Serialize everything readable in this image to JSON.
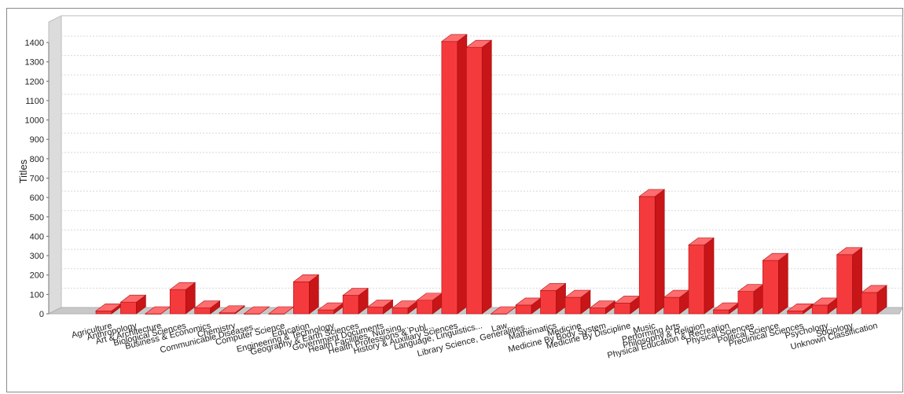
{
  "chart_data": {
    "type": "bar",
    "ylabel": "Titles",
    "ylim": [
      0,
      1400
    ],
    "yticks": [
      0,
      100,
      200,
      300,
      400,
      500,
      600,
      700,
      800,
      900,
      1000,
      1100,
      1200,
      1300,
      1400
    ],
    "grid": true,
    "categories": [
      "Agriculture",
      "Anthropology",
      "Art & Architecture",
      "Biological Sciences",
      "Business & Economics",
      "Chemistry",
      "Communicable Diseases...",
      "Computer Science",
      "Education",
      "Engineering & Technology",
      "Geography & Earth Sciences",
      "Government Documents",
      "Health Facilities, Nursing...",
      "Health Professions & Publ...",
      "History & Auxiliary Sciences",
      "Language, Linguistics...",
      "Law",
      "Library Science, Generalities...",
      "Mathematics",
      "Medicine",
      "Medicine By Body System",
      "Medicine By Discipline",
      "Music",
      "Performing Arts",
      "Philosophy & Religion",
      "Physical Education & Recreation",
      "Physical Sciences",
      "Political Science",
      "Preclinical Sciences",
      "Psychology",
      "Sociology",
      "Unknown Classification"
    ],
    "values": [
      15,
      60,
      0,
      125,
      30,
      5,
      0,
      0,
      165,
      20,
      95,
      35,
      30,
      70,
      1405,
      1375,
      0,
      45,
      120,
      85,
      30,
      55,
      605,
      85,
      355,
      20,
      115,
      275,
      15,
      45,
      305,
      110
    ],
    "colors": {
      "bar_front": "#f53a3d",
      "bar_side": "#c81518",
      "bar_top": "#ff6d6f",
      "grid": "#d8d8d8",
      "floor": "#c8c8c8"
    }
  }
}
